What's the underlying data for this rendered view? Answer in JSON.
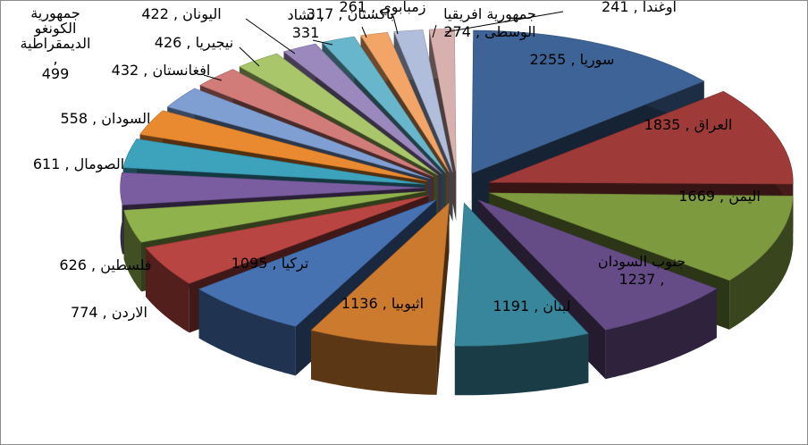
{
  "chart_data": {
    "type": "pie",
    "style": "3d-exploded",
    "title": "",
    "label_format": "name , value",
    "slices": [
      {
        "label": "سوريا",
        "value": 2255,
        "color": "#3e6396"
      },
      {
        "label": "العراق",
        "value": 1835,
        "color": "#9e3b38"
      },
      {
        "label": "اليمن",
        "value": 1669,
        "color": "#7e9a3f"
      },
      {
        "label": "جنوب السودان",
        "value": 1237,
        "color": "#664c86"
      },
      {
        "label": "لبنان",
        "value": 1191,
        "color": "#37869c"
      },
      {
        "label": "اثيوبيا",
        "value": 1136,
        "color": "#cc7a2e"
      },
      {
        "label": "تركيا",
        "value": 1095,
        "color": "#4672b2"
      },
      {
        "label": "الاردن",
        "value": 774,
        "color": "#b84541"
      },
      {
        "label": "فلسطين",
        "value": 626,
        "color": "#8fb24c"
      },
      {
        "label": "الصومال",
        "value": 611,
        "color": "#7a5ca0"
      },
      {
        "label": "السودان",
        "value": 558,
        "color": "#3da2bc"
      },
      {
        "label": "جمهورية الكونغو الديمقراطية",
        "value": 499,
        "color": "#e98a30"
      },
      {
        "label": "افغانستان",
        "value": 432,
        "color": "#7f9fd2"
      },
      {
        "label": "نيجيريا",
        "value": 426,
        "color": "#d27c79"
      },
      {
        "label": "اليونان",
        "value": 422,
        "color": "#a9c66a"
      },
      {
        "label": "تشاد",
        "value": 331,
        "color": "#9b88bd"
      },
      {
        "label": "باكستان",
        "value": 317,
        "color": "#68b6cc"
      },
      {
        "label": "زمبابوي",
        "value": 261,
        "color": "#f2a566"
      },
      {
        "label": "جمهورية افريقيا الوسطى",
        "value": 274,
        "color": "#b1bedb"
      },
      {
        "label": "اوغندا",
        "value": 241,
        "color": "#d8b0ae"
      }
    ],
    "label_lines": [
      {
        "id": "syr",
        "lines": [
          "2255 , سوريا"
        ]
      },
      {
        "id": "irq",
        "lines": [
          "1835 , العراق"
        ]
      },
      {
        "id": "yem",
        "lines": [
          "1669 , اليمن"
        ]
      },
      {
        "id": "ssd",
        "lines": [
          "جنوب السودان",
          "1237 ,"
        ]
      },
      {
        "id": "lbn",
        "lines": [
          "1191 , لبنان"
        ]
      },
      {
        "id": "eth",
        "lines": [
          "1136 , اثيوبيا"
        ]
      },
      {
        "id": "tur",
        "lines": [
          "1095 , تركيا"
        ]
      },
      {
        "id": "jor",
        "lines": [
          "774 , الاردن"
        ]
      },
      {
        "id": "pse",
        "lines": [
          "626 , فلسطين"
        ]
      },
      {
        "id": "som",
        "lines": [
          "611 , الصومال"
        ]
      },
      {
        "id": "sdn",
        "lines": [
          "558 , السودان"
        ]
      },
      {
        "id": "cod",
        "lines": [
          "جمهورية",
          "الكونغو",
          "الديمقراطية",
          ",",
          "499"
        ]
      },
      {
        "id": "afg",
        "lines": [
          "432 , افغانستان"
        ]
      },
      {
        "id": "nga",
        "lines": [
          "426 , نيجيريا"
        ]
      },
      {
        "id": "grc",
        "lines": [
          "422 , اليونان"
        ]
      },
      {
        "id": "tcd",
        "lines": [
          "تشاد ,",
          "331"
        ]
      },
      {
        "id": "pak",
        "lines": [
          "317 , باكستان"
        ]
      },
      {
        "id": "zwe",
        "lines": [
          "261 , زمبابوي"
        ]
      },
      {
        "id": "caf",
        "lines": [
          "جمهورية افريقيا",
          "274 , الوسطى"
        ]
      },
      {
        "id": "uga",
        "lines": [
          "241 , اوغندا"
        ]
      }
    ]
  }
}
